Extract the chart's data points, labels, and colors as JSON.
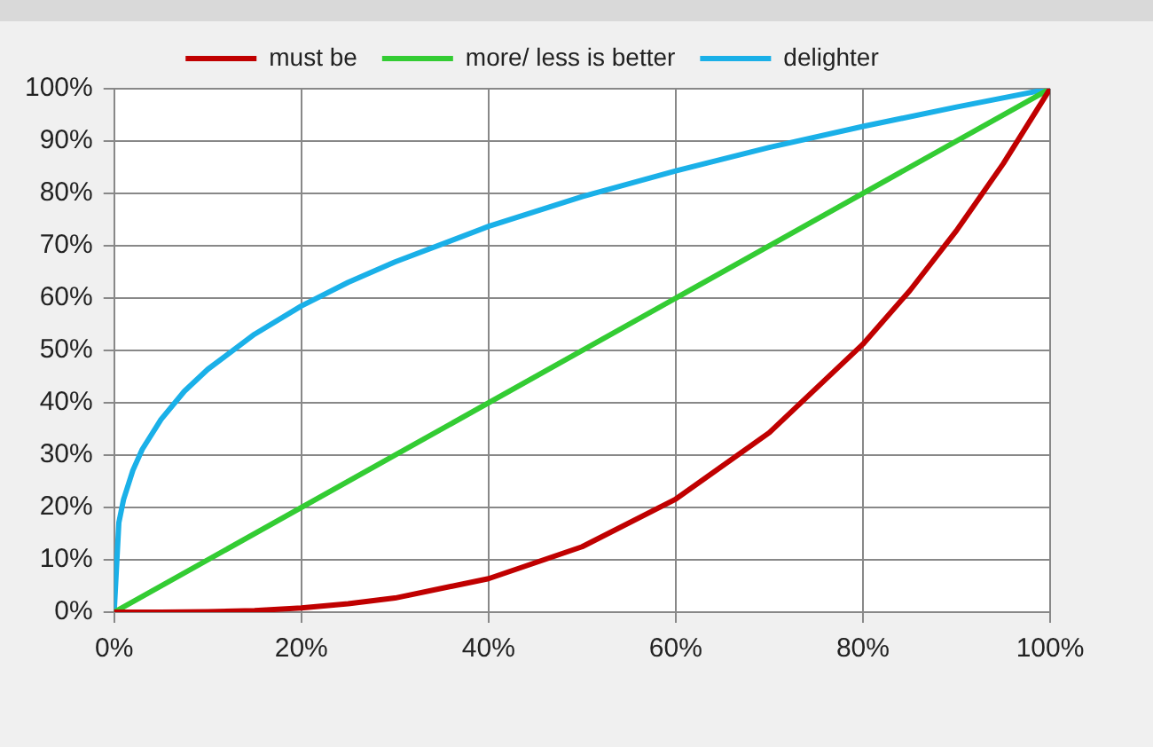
{
  "chart_data": {
    "type": "line",
    "xlim": [
      0,
      100
    ],
    "ylim": [
      0,
      100
    ],
    "xticks": [
      {
        "value": 0,
        "label": "0%"
      },
      {
        "value": 20,
        "label": "20%"
      },
      {
        "value": 40,
        "label": "40%"
      },
      {
        "value": 60,
        "label": "60%"
      },
      {
        "value": 80,
        "label": "80%"
      },
      {
        "value": 100,
        "label": "100%"
      }
    ],
    "yticks": [
      {
        "value": 0,
        "label": "0%"
      },
      {
        "value": 10,
        "label": "10%"
      },
      {
        "value": 20,
        "label": "20%"
      },
      {
        "value": 30,
        "label": "30%"
      },
      {
        "value": 40,
        "label": "40%"
      },
      {
        "value": 50,
        "label": "50%"
      },
      {
        "value": 60,
        "label": "60%"
      },
      {
        "value": 70,
        "label": "70%"
      },
      {
        "value": 80,
        "label": "80%"
      },
      {
        "value": 90,
        "label": "90%"
      },
      {
        "value": 100,
        "label": "100%"
      }
    ],
    "grid": true,
    "legend": "top",
    "marker": "none",
    "line_style": "solid",
    "series": [
      {
        "name": "must be",
        "color": "#c00000",
        "x": [
          0,
          5,
          10,
          15,
          20,
          25,
          30,
          40,
          50,
          60,
          70,
          80,
          85,
          90,
          95,
          100
        ],
        "values": [
          0,
          0,
          0.1,
          0.3,
          0.8,
          1.6,
          2.7,
          6.4,
          12.5,
          21.6,
          34.3,
          51.2,
          61.4,
          72.9,
          85.7,
          100
        ]
      },
      {
        "name": "more/ less is better",
        "color": "#33cc33",
        "x": [
          0,
          100
        ],
        "values": [
          0,
          100
        ]
      },
      {
        "name": "delighter",
        "color": "#1ab0e8",
        "x": [
          0,
          0.5,
          1,
          2,
          3,
          5,
          7.5,
          10,
          15,
          20,
          25,
          30,
          40,
          50,
          60,
          70,
          80,
          90,
          100
        ],
        "values": [
          0,
          17.1,
          21.5,
          27.1,
          31.1,
          36.8,
          42.2,
          46.4,
          53.1,
          58.5,
          63,
          66.9,
          73.7,
          79.4,
          84.3,
          88.8,
          92.8,
          96.5,
          100
        ]
      }
    ]
  }
}
